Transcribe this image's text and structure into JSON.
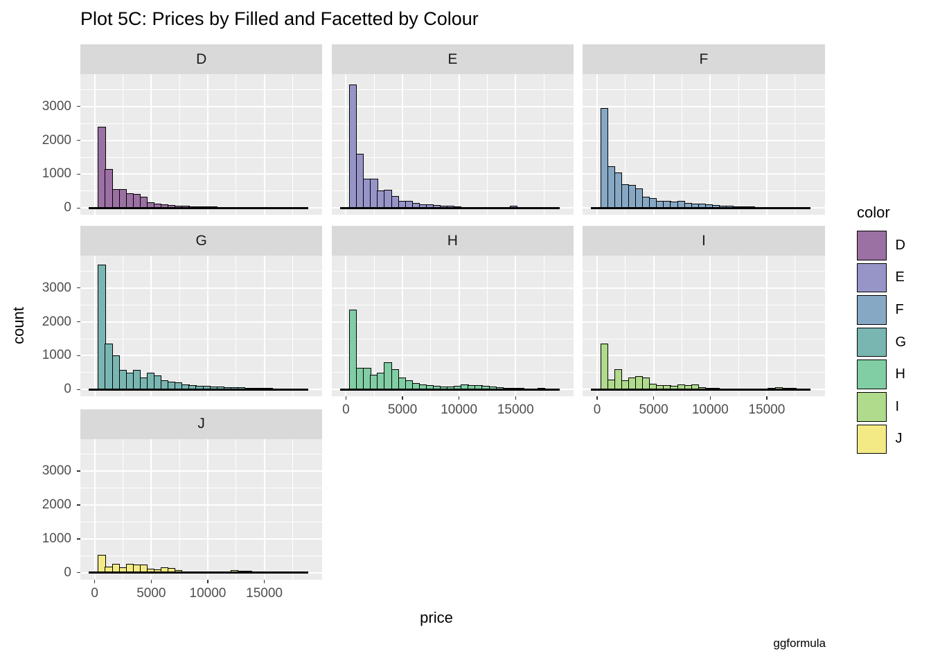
{
  "title": "Plot 5C: Prices by Filled and Facetted by Colour",
  "watermark": "ggformula",
  "axis": {
    "xlabel": "price",
    "ylabel": "count"
  },
  "legend": {
    "title": "color",
    "position": "right",
    "entries": [
      {
        "label": "D",
        "fill": "#9B70A2"
      },
      {
        "label": "E",
        "fill": "#9794C8"
      },
      {
        "label": "F",
        "fill": "#87A8C5"
      },
      {
        "label": "G",
        "fill": "#79B6B2"
      },
      {
        "label": "H",
        "fill": "#81CDA4"
      },
      {
        "label": "I",
        "fill": "#B0DA8C"
      },
      {
        "label": "J",
        "fill": "#F4EA85"
      }
    ]
  },
  "style": {
    "panel_bg": "#EBEBEB",
    "strip_bg": "#D9D9D9",
    "grid_color": "#FFFFFF",
    "bar_stroke": "#000000",
    "axis_text": "#4D4D4D"
  },
  "chart_data": {
    "type": "bar",
    "subtype": "faceted-histogram",
    "title": "Plot 5C: Prices by Filled and Facetted by Colour",
    "xlabel": "price",
    "ylabel": "count",
    "x_tick_labels": [
      "0",
      "5000",
      "10000",
      "15000"
    ],
    "x_tick_values": [
      0,
      5000,
      10000,
      15000
    ],
    "x_minor_values": [
      2500,
      7500,
      12500,
      17500
    ],
    "y_tick_labels": [
      "0",
      "1000",
      "2000",
      "3000"
    ],
    "y_tick_values": [
      0,
      1000,
      2000,
      3000
    ],
    "y_minor_values": [
      500,
      1500,
      2500,
      3500
    ],
    "xlim": [
      -1270,
      20130
    ],
    "ylim": [
      -205,
      3950
    ],
    "grid": true,
    "legend_title": "color",
    "legend_position": "right",
    "bin_start": 326,
    "bin_width": 617,
    "facets": [
      {
        "label": "D",
        "fill": "#9B70A2",
        "row": 0,
        "col": 0,
        "x_axis": false,
        "counts": [
          2400,
          1150,
          550,
          560,
          430,
          420,
          330,
          180,
          120,
          100,
          80,
          70,
          60,
          55,
          50,
          45,
          40,
          35,
          30,
          25,
          22,
          20,
          18,
          15,
          12,
          10,
          8,
          8,
          6,
          5
        ]
      },
      {
        "label": "E",
        "fill": "#9794C8",
        "row": 0,
        "col": 1,
        "x_axis": false,
        "counts": [
          3650,
          1600,
          870,
          860,
          510,
          540,
          350,
          210,
          210,
          140,
          100,
          100,
          95,
          65,
          60,
          50,
          30,
          25,
          20,
          18,
          15,
          12,
          10,
          60,
          8,
          6,
          5,
          4,
          3,
          2
        ]
      },
      {
        "label": "F",
        "fill": "#87A8C5",
        "row": 0,
        "col": 2,
        "x_axis": false,
        "counts": [
          2950,
          1230,
          1060,
          700,
          685,
          580,
          330,
          300,
          220,
          205,
          190,
          205,
          150,
          130,
          120,
          100,
          90,
          70,
          60,
          50,
          45,
          40,
          35,
          30,
          25,
          20,
          18,
          25,
          15,
          25
        ]
      },
      {
        "label": "G",
        "fill": "#79B6B2",
        "row": 1,
        "col": 0,
        "x_axis": false,
        "counts": [
          3700,
          1360,
          1010,
          580,
          490,
          585,
          355,
          490,
          410,
          270,
          230,
          215,
          150,
          130,
          115,
          100,
          90,
          85,
          75,
          65,
          60,
          55,
          50,
          45,
          40,
          35,
          30,
          25,
          20,
          15
        ]
      },
      {
        "label": "H",
        "fill": "#81CDA4",
        "row": 1,
        "col": 1,
        "x_axis": true,
        "counts": [
          2350,
          640,
          640,
          435,
          500,
          800,
          590,
          350,
          270,
          200,
          150,
          120,
          100,
          95,
          90,
          100,
          150,
          130,
          120,
          110,
          90,
          70,
          55,
          45,
          40,
          35,
          30,
          50,
          30,
          10
        ]
      },
      {
        "label": "I",
        "fill": "#B0DA8C",
        "row": 1,
        "col": 2,
        "x_axis": true,
        "counts": [
          1350,
          300,
          600,
          270,
          355,
          390,
          360,
          180,
          130,
          120,
          110,
          140,
          130,
          145,
          70,
          50,
          40,
          35,
          30,
          28,
          25,
          22,
          20,
          35,
          45,
          60,
          55,
          45,
          30,
          12
        ]
      },
      {
        "label": "J",
        "fill": "#F4EA85",
        "row": 2,
        "col": 0,
        "x_axis": true,
        "counts": [
          530,
          170,
          255,
          160,
          265,
          240,
          240,
          110,
          90,
          150,
          135,
          82,
          40,
          25,
          20,
          15,
          12,
          10,
          15,
          80,
          60,
          45,
          15,
          10,
          8,
          5,
          5,
          25,
          8,
          4
        ]
      }
    ]
  }
}
